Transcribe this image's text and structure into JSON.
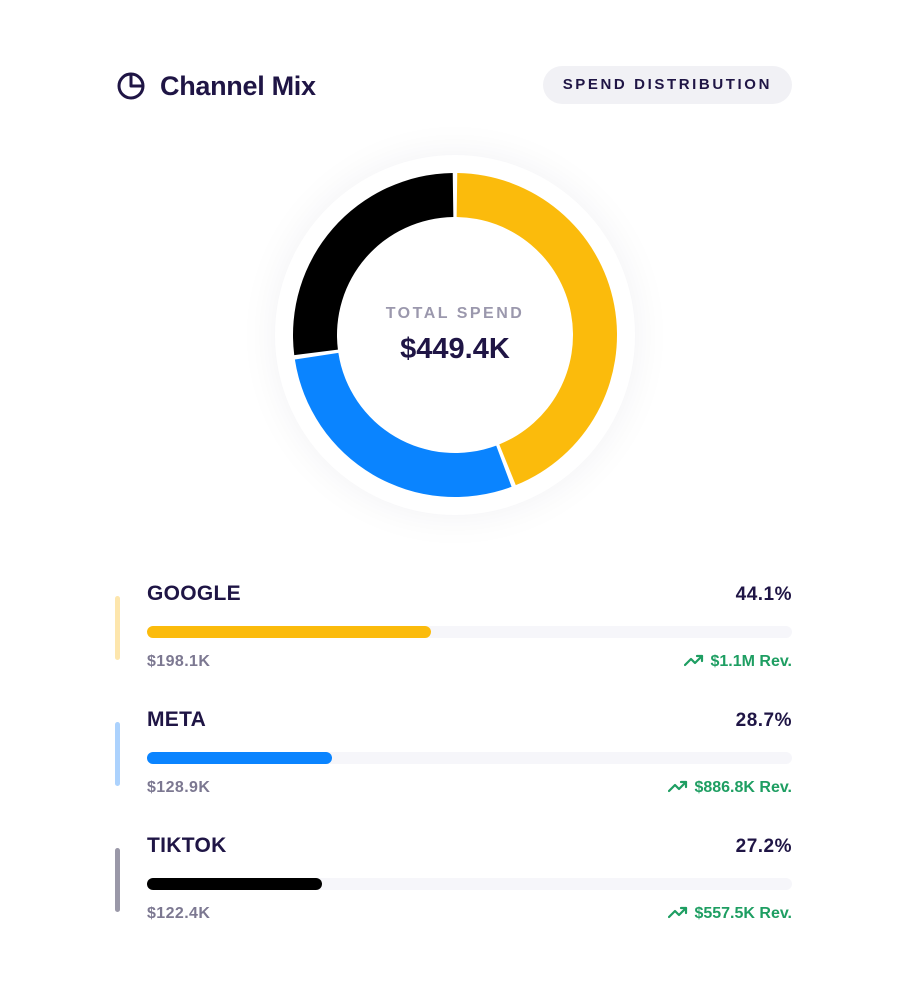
{
  "header": {
    "title": "Channel Mix",
    "badge": "SPEND DISTRIBUTION",
    "title_icon": "pie-chart-icon"
  },
  "donut": {
    "center_label": "TOTAL SPEND",
    "center_value": "$449.4K"
  },
  "chart_data": {
    "type": "pie",
    "style": "donut",
    "categories": [
      "GOOGLE",
      "META",
      "TIKTOK"
    ],
    "values": [
      44.1,
      28.7,
      27.2
    ],
    "colors": [
      "#fbbb0c",
      "#0a84ff",
      "#000000"
    ],
    "total": "$449.4K"
  },
  "channels": [
    {
      "name": "GOOGLE",
      "percent_label": "44.1%",
      "share": 44.1,
      "spend": "$198.1K",
      "revenue": "$1.1M Rev.",
      "color": "#fbbb0c",
      "accent_color": "#fde6ad"
    },
    {
      "name": "META",
      "percent_label": "28.7%",
      "share": 28.7,
      "spend": "$128.9K",
      "revenue": "$886.8K Rev.",
      "color": "#0a84ff",
      "accent_color": "#acd2fd"
    },
    {
      "name": "TIKTOK",
      "percent_label": "27.2%",
      "share": 27.2,
      "spend": "$122.4K",
      "revenue": "$557.5K Rev.",
      "color": "#000000",
      "accent_color": "#9a98a8"
    }
  ],
  "colors": {
    "text": "#1f1545",
    "muted": "#7c7891",
    "positive": "#1e9e62",
    "badge_bg": "#f1f1f5"
  },
  "icons": {
    "trend": "trending-up-icon"
  }
}
